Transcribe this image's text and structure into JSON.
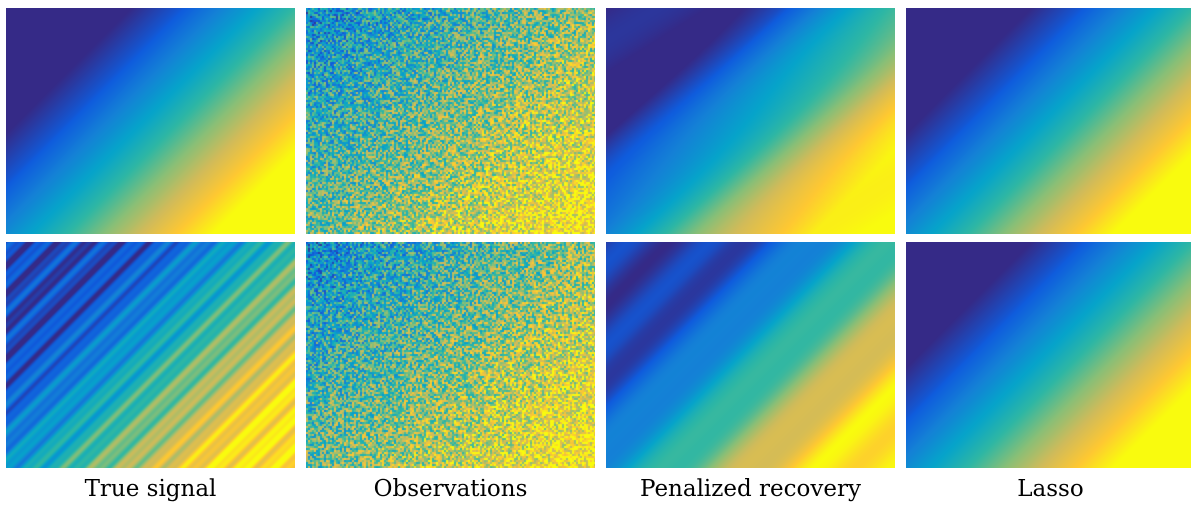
{
  "figure": {
    "colormap": "parula",
    "colors": [
      "#352a87",
      "#0f5cdd",
      "#1481d6",
      "#06a4ca",
      "#2eb7a4",
      "#87bf77",
      "#d1bb59",
      "#fec832",
      "#f9fb0e"
    ],
    "columns": [
      {
        "caption": "True signal"
      },
      {
        "caption": "Observations"
      },
      {
        "caption": "Penalized recovery"
      },
      {
        "caption": "Lasso"
      }
    ],
    "rows": [
      {
        "panels": [
          {
            "kind": "smooth"
          },
          {
            "kind": "noisy"
          },
          {
            "kind": "recovered"
          },
          {
            "kind": "lasso"
          }
        ]
      },
      {
        "panels": [
          {
            "kind": "striped"
          },
          {
            "kind": "noisy"
          },
          {
            "kind": "recovered-striped"
          },
          {
            "kind": "lasso"
          }
        ]
      }
    ]
  }
}
